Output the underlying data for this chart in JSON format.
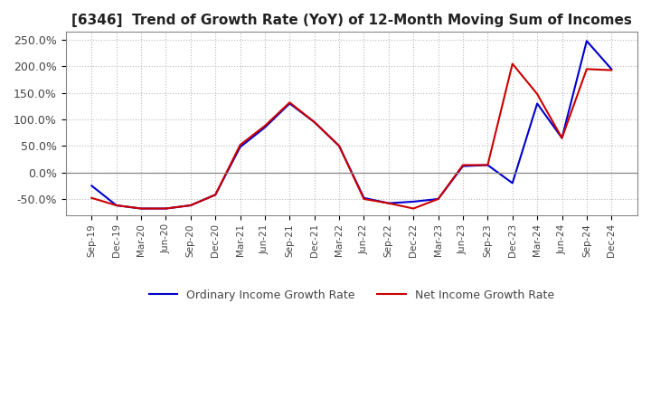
{
  "title": "[6346]  Trend of Growth Rate (YoY) of 12-Month Moving Sum of Incomes",
  "title_fontsize": 11,
  "ylim": [
    -80,
    265
  ],
  "yticks": [
    -50,
    0,
    50,
    100,
    150,
    200,
    250
  ],
  "ytick_labels": [
    "-50.0%",
    "0.0%",
    "50.0%",
    "100.0%",
    "150.0%",
    "200.0%",
    "250.0%"
  ],
  "background_color": "#ffffff",
  "plot_bg_color": "#ffffff",
  "grid_color": "#bbbbbb",
  "line_blue": "#0000cc",
  "line_red": "#cc0000",
  "legend_labels": [
    "Ordinary Income Growth Rate",
    "Net Income Growth Rate"
  ],
  "x_labels": [
    "Sep-19",
    "Dec-19",
    "Mar-20",
    "Jun-20",
    "Sep-20",
    "Dec-20",
    "Mar-21",
    "Jun-21",
    "Sep-21",
    "Dec-21",
    "Mar-22",
    "Jun-22",
    "Sep-22",
    "Dec-22",
    "Mar-23",
    "Jun-23",
    "Sep-23",
    "Dec-23",
    "Mar-24",
    "Jun-24",
    "Sep-24",
    "Dec-24"
  ],
  "ordinary_income_gr": [
    -25,
    -62,
    -68,
    -68,
    -62,
    -42,
    48,
    85,
    130,
    95,
    50,
    -48,
    -58,
    -55,
    -50,
    12,
    14,
    -20,
    130,
    65,
    248,
    195
  ],
  "net_income_gr": [
    -48,
    -62,
    -68,
    -68,
    -62,
    -42,
    52,
    88,
    132,
    95,
    50,
    -50,
    -58,
    -68,
    -50,
    14,
    14,
    205,
    148,
    65,
    195,
    193
  ]
}
